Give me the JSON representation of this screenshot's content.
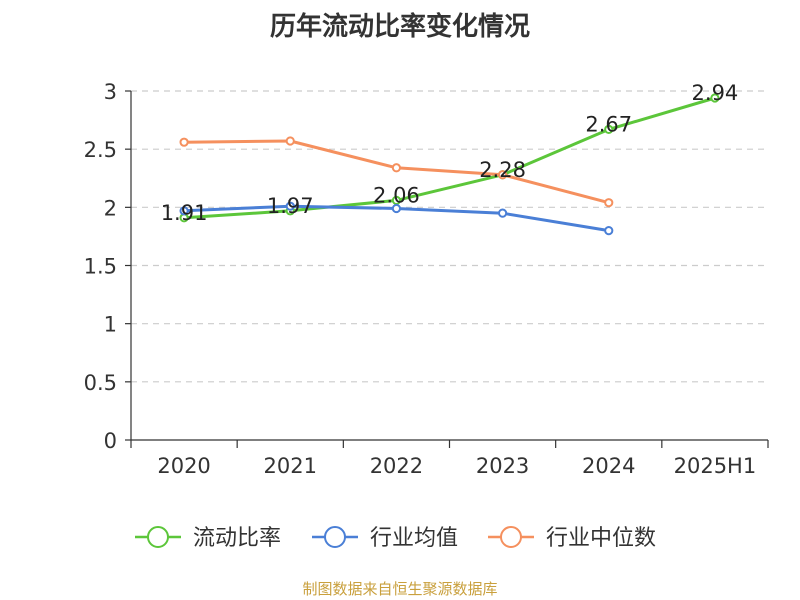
{
  "chart_data": {
    "type": "line",
    "title": "历年流动比率变化情况",
    "categories": [
      "2020",
      "2021",
      "2022",
      "2023",
      "2024",
      "2025H1"
    ],
    "ylim": [
      0,
      3
    ],
    "yticks": [
      "0",
      "0.5",
      "1",
      "1.5",
      "2",
      "2.5",
      "3"
    ],
    "grid": true,
    "legend_position": "bottom",
    "series": [
      {
        "name": "流动比率",
        "color": "#5cc63a",
        "values": [
          1.91,
          1.97,
          2.06,
          2.28,
          2.67,
          2.94
        ],
        "labels": [
          "1.91",
          "1.97",
          "2.06",
          "2.28",
          "2.67",
          "2.94"
        ]
      },
      {
        "name": "行业均值",
        "color": "#4a7fd6",
        "values": [
          1.97,
          2.01,
          1.99,
          1.95,
          1.8,
          null
        ]
      },
      {
        "name": "行业中位数",
        "color": "#f5905e",
        "values": [
          2.56,
          2.57,
          2.34,
          2.28,
          2.04,
          null
        ]
      }
    ]
  },
  "footer": "制图数据来自恒生聚源数据库"
}
